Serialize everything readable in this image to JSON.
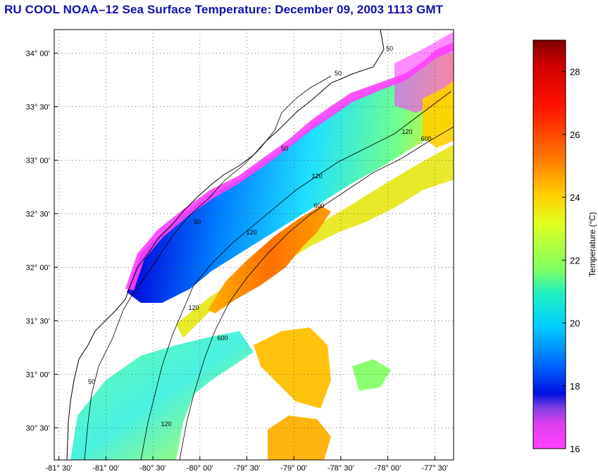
{
  "title": "RU COOL  NOAA–12  Sea Surface Temperature:  December 09, 2003 1113 GMT",
  "map": {
    "lon_ticks": [
      "-81° 30’",
      "-81° 00’",
      "-80° 30’",
      "-80° 00’",
      "-79° 30’",
      "-79° 00’",
      "-78° 30’",
      "-78° 00’",
      "-77° 30’"
    ],
    "lat_ticks": [
      "34° 00’",
      "33° 30’",
      "33° 00’",
      "32° 30’",
      "32° 00’",
      "31° 30’",
      "31° 00’",
      "30° 30’"
    ],
    "lon_range": [
      -81.55,
      -77.3
    ],
    "lat_range": [
      30.2,
      34.22
    ],
    "grid": true,
    "contour_labels": [
      "50",
      "50",
      "50",
      "50",
      "50",
      "120",
      "120",
      "120",
      "120",
      "120",
      "600",
      "600",
      "600"
    ]
  },
  "colorbar": {
    "label": "Temperature (°C)",
    "ticks": [
      "28",
      "26",
      "24",
      "22",
      "20",
      "18",
      "16"
    ],
    "range": [
      16,
      29
    ]
  }
}
